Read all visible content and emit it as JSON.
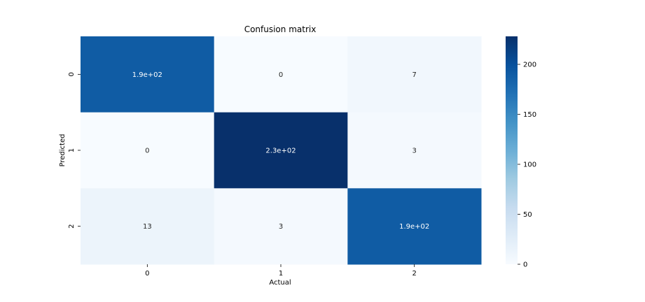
{
  "chart_data": {
    "type": "heatmap",
    "title": "Confusion matrix",
    "xlabel": "Actual",
    "ylabel": "Predicted",
    "x_categories": [
      "0",
      "1",
      "2"
    ],
    "y_categories": [
      "0",
      "1",
      "2"
    ],
    "values": [
      [
        190,
        0,
        7
      ],
      [
        0,
        230,
        3
      ],
      [
        13,
        3,
        190
      ]
    ],
    "annotations": [
      [
        "1.9e+02",
        "0",
        "7"
      ],
      [
        "0",
        "2.3e+02",
        "3"
      ],
      [
        "13",
        "3",
        "1.9e+02"
      ]
    ],
    "colormap": "Blues",
    "color_range": [
      0,
      228
    ],
    "colorbar_ticks": [
      0,
      50,
      100,
      150,
      200
    ],
    "colorbar_tick_labels": [
      "0",
      "50",
      "100",
      "150",
      "200"
    ]
  }
}
